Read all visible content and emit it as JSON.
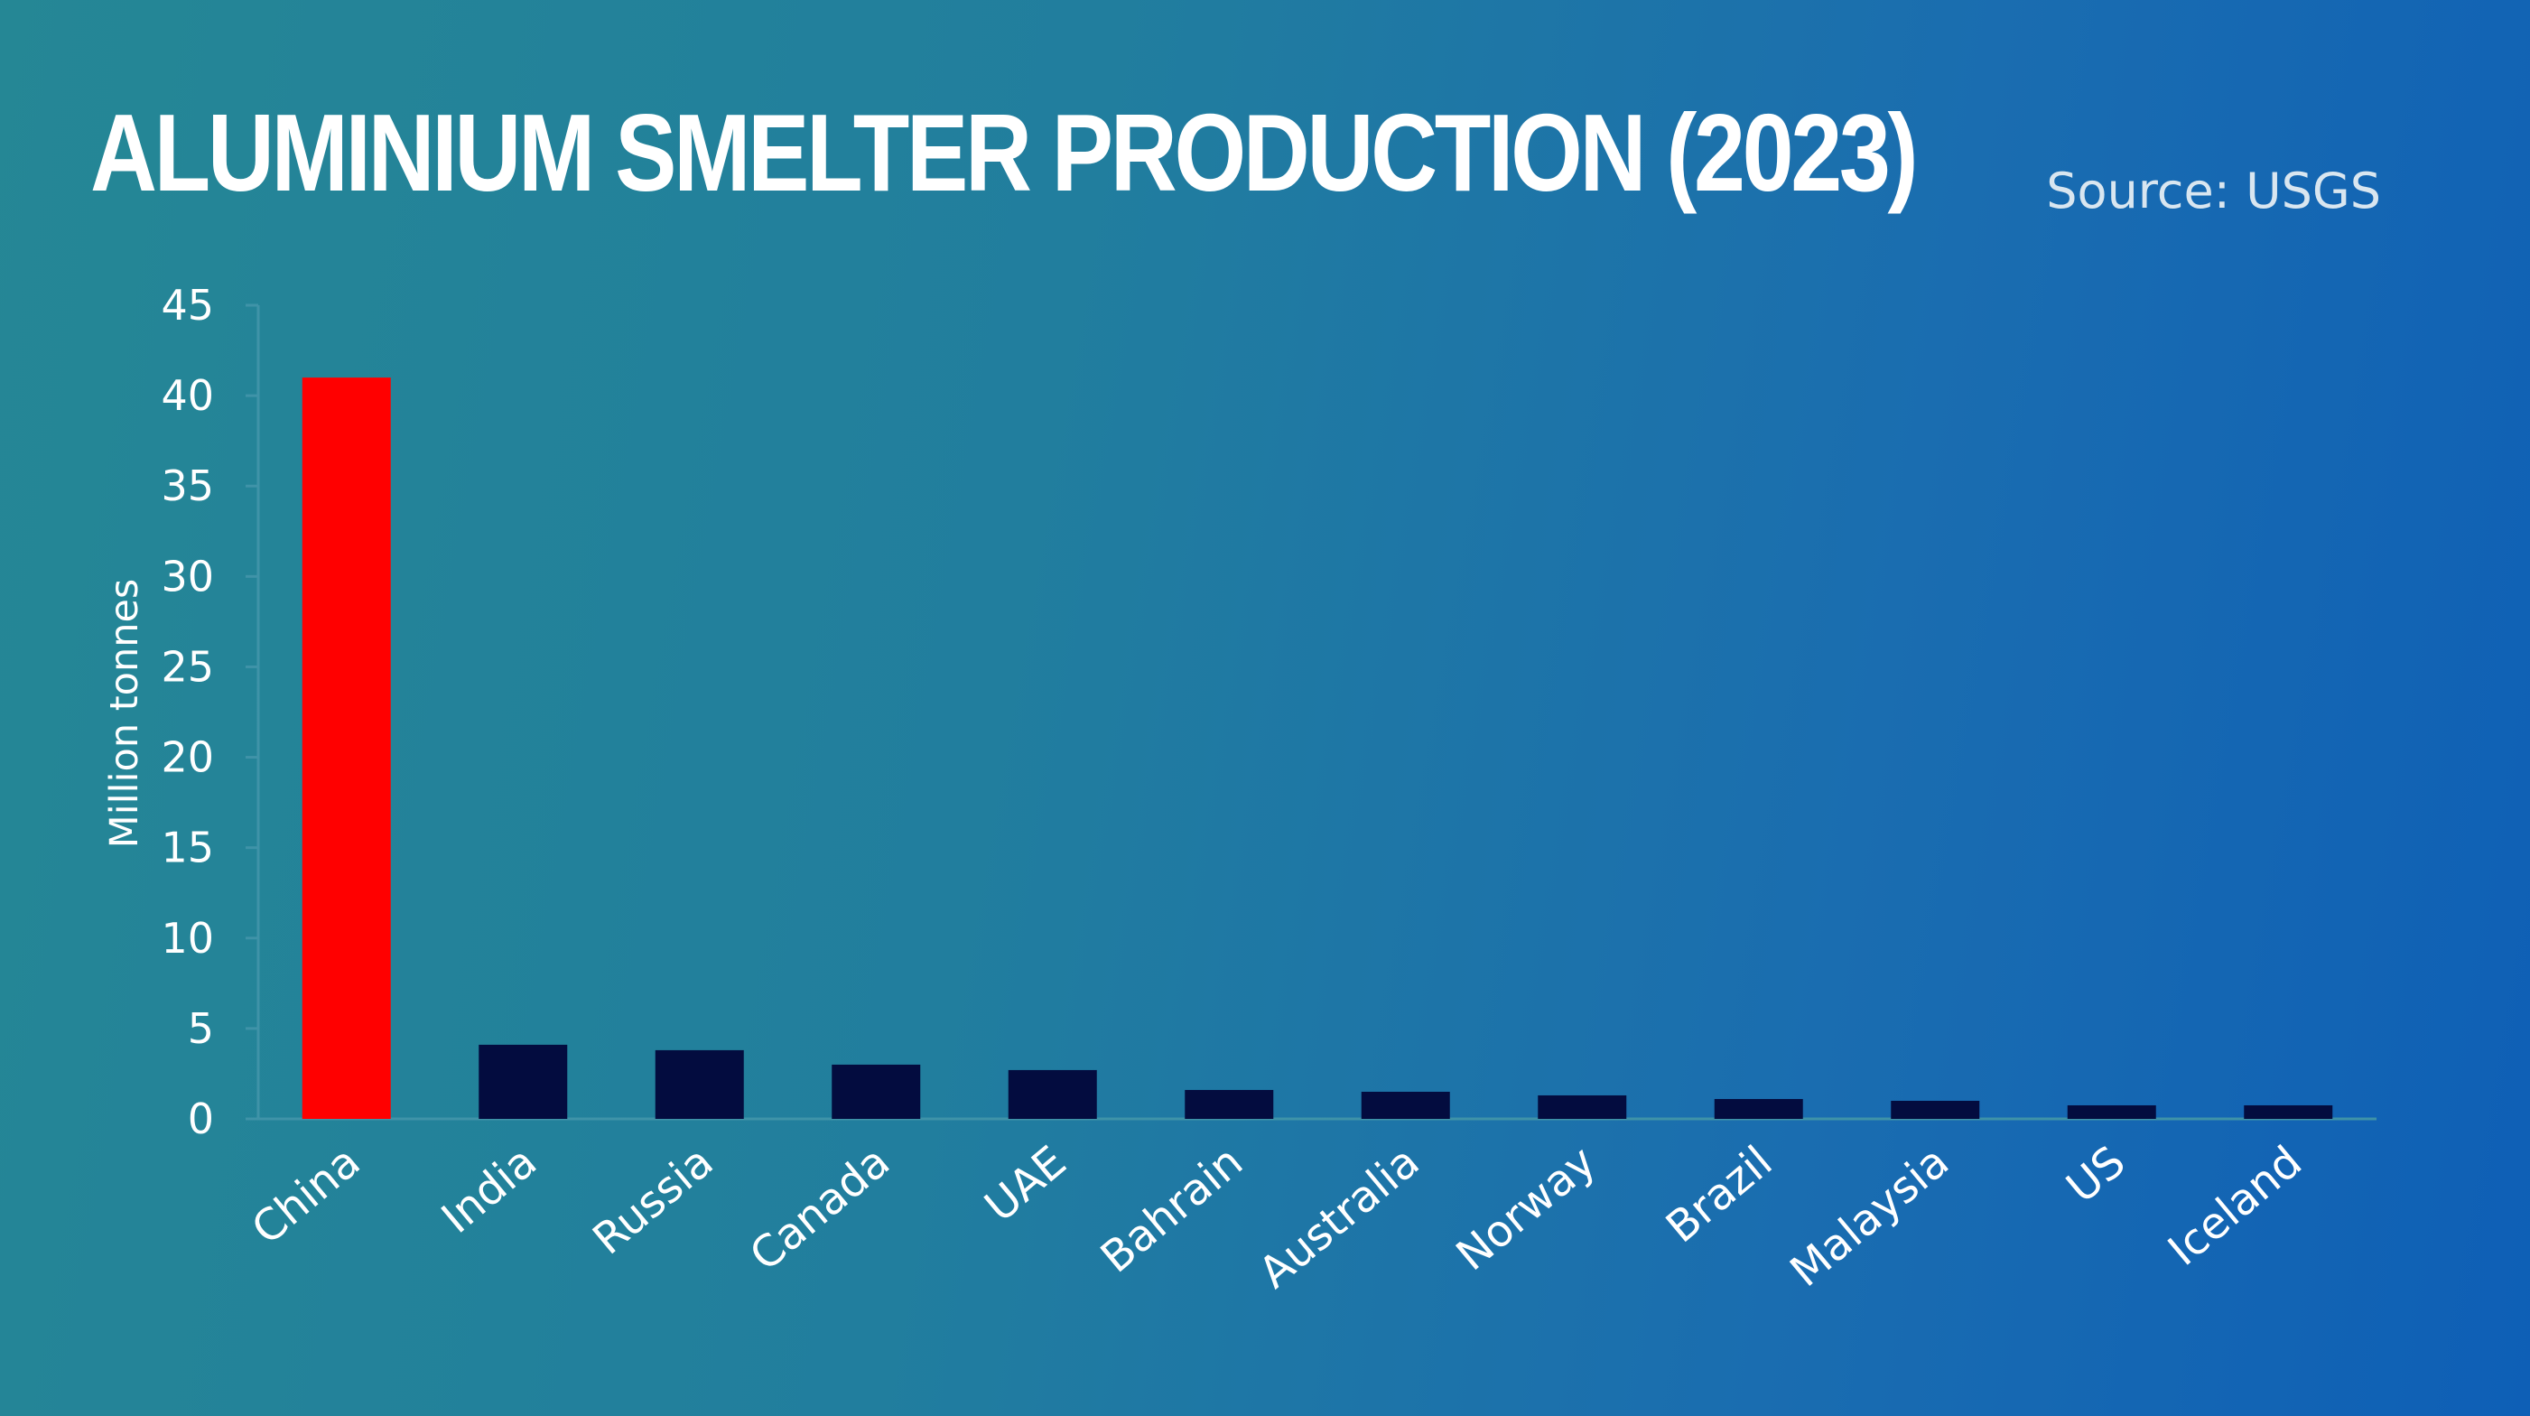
{
  "title": "ALUMINIUM SMELTER PRODUCTION (2023)",
  "source": "Source: USGS",
  "colors": {
    "highlight": "#ff0000",
    "bar": "#030c3f",
    "axis": "#3f93a8",
    "text": "#ffffff"
  },
  "chart_data": {
    "type": "bar",
    "title": "ALUMINIUM SMELTER PRODUCTION (2023)",
    "xlabel": "",
    "ylabel": "Million tonnes",
    "ylim": [
      0,
      45
    ],
    "yticks": [
      0,
      5,
      10,
      15,
      20,
      25,
      30,
      35,
      40,
      45
    ],
    "grid": false,
    "legend": "none",
    "highlight_category": "China",
    "categories": [
      "China",
      "India",
      "Russia",
      "Canada",
      "UAE",
      "Bahrain",
      "Australia",
      "Norway",
      "Brazil",
      "Malaysia",
      "US",
      "Iceland"
    ],
    "values": [
      41,
      4.1,
      3.8,
      3.0,
      2.7,
      1.6,
      1.5,
      1.3,
      1.1,
      1.0,
      0.75,
      0.75
    ]
  }
}
